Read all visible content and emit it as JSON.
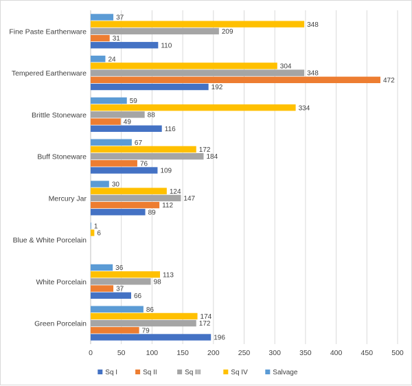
{
  "chart_data": {
    "type": "bar",
    "orientation": "horizontal",
    "title": "",
    "xlabel": "",
    "ylabel": "",
    "xlim": [
      0,
      500
    ],
    "x_ticks": [
      "0",
      "50",
      "100",
      "150",
      "200",
      "250",
      "300",
      "350",
      "400",
      "450",
      "500"
    ],
    "grid": true,
    "legend_position": "bottom",
    "categories": [
      "Fine Paste Earthenware",
      "Tempered Earthenware",
      "Brittle Stoneware",
      "Buff Stoneware",
      "Mercury Jar",
      "Blue & White Porcelain",
      "White Porcelain",
      "Green Porcelain"
    ],
    "series": [
      {
        "name": "Sq I",
        "color": "#4472C4",
        "values": [
          110,
          192,
          116,
          109,
          89,
          null,
          66,
          196
        ]
      },
      {
        "name": "Sq II",
        "color": "#ED7D31",
        "values": [
          31,
          472,
          49,
          76,
          112,
          null,
          37,
          79
        ]
      },
      {
        "name": "Sq III",
        "color": "#A5A5A5",
        "values": [
          209,
          348,
          88,
          184,
          147,
          null,
          98,
          172
        ]
      },
      {
        "name": "Sq IV",
        "color": "#FFC000",
        "values": [
          348,
          304,
          334,
          172,
          124,
          6,
          113,
          174
        ]
      },
      {
        "name": "Salvage",
        "color": "#5B9BD5",
        "values": [
          37,
          24,
          59,
          67,
          30,
          1,
          36,
          86
        ]
      }
    ]
  }
}
